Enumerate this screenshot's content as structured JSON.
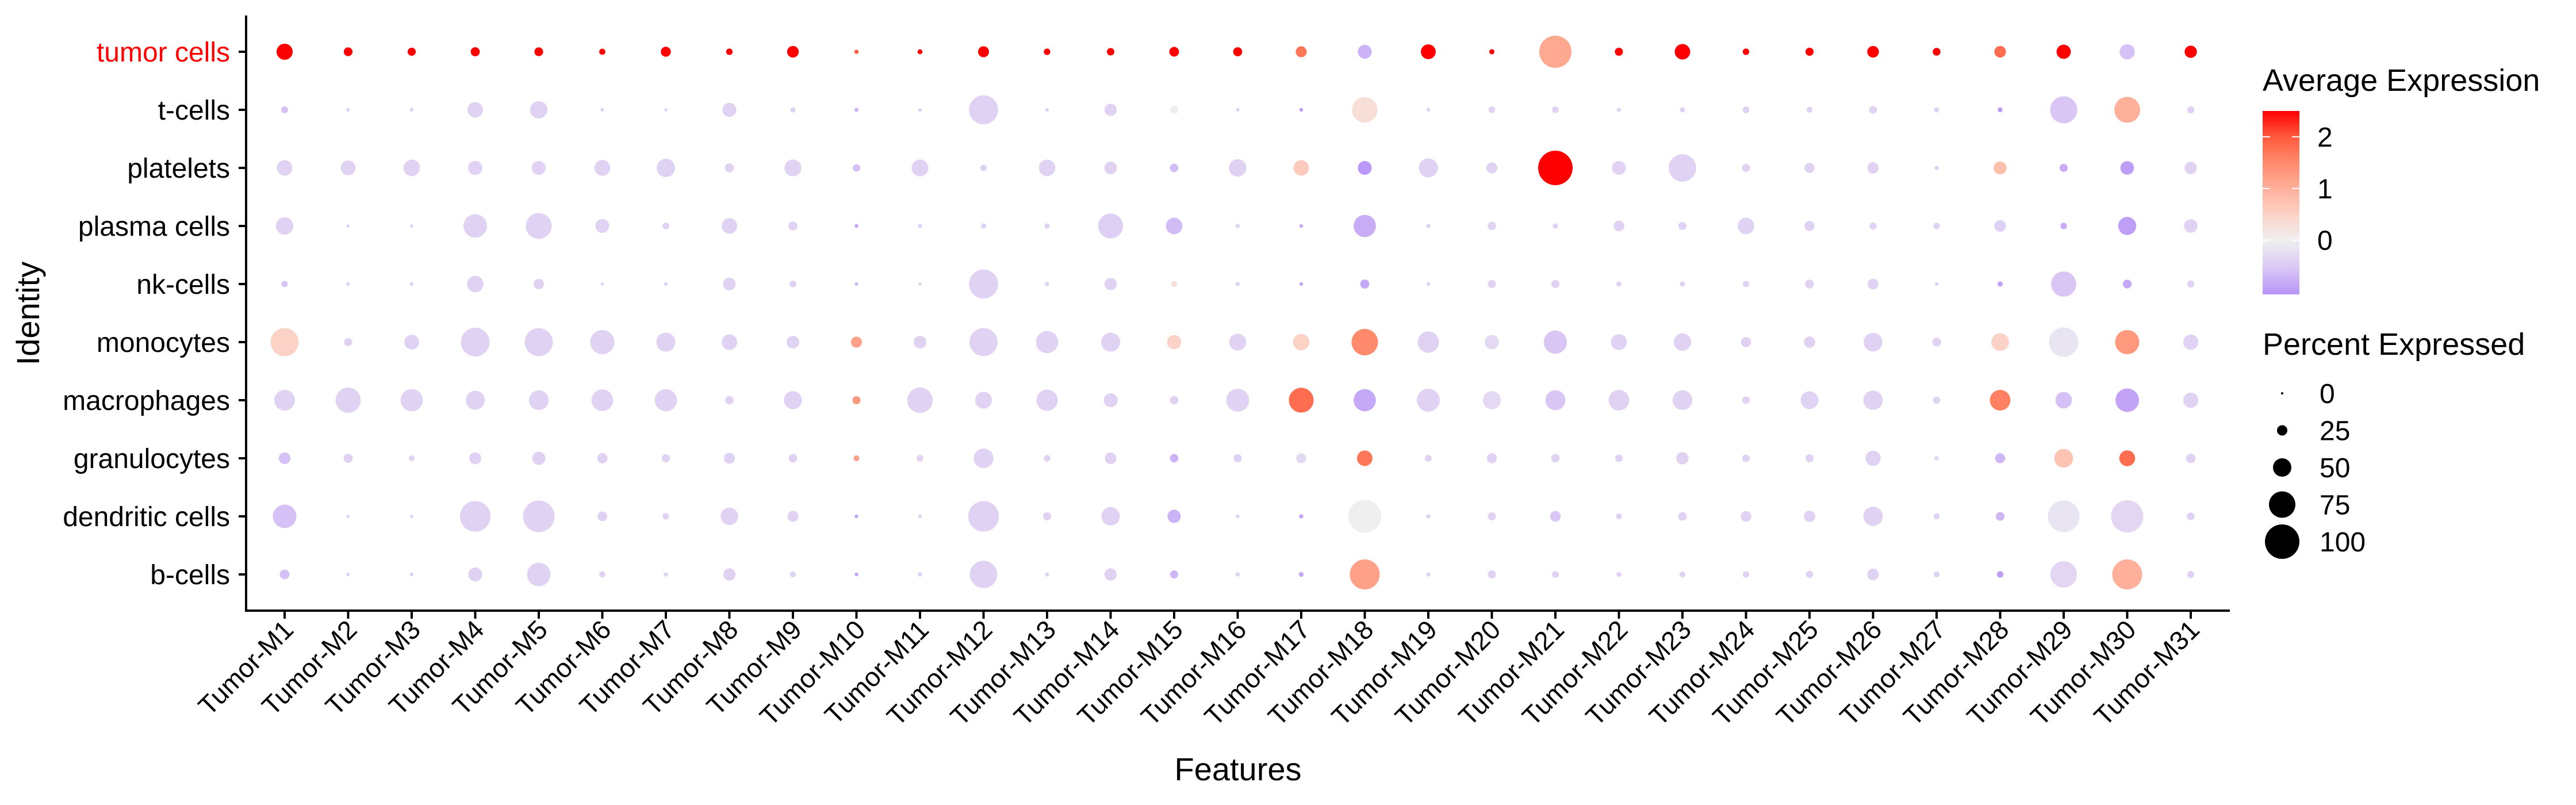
{
  "chart_data": {
    "type": "dotplot",
    "xlabel": "Features",
    "ylabel": "Identity",
    "highlight_color": "#FF0000",
    "highlighted_identity": "tumor cells",
    "features": [
      "Tumor-M1",
      "Tumor-M2",
      "Tumor-M3",
      "Tumor-M4",
      "Tumor-M5",
      "Tumor-M6",
      "Tumor-M7",
      "Tumor-M8",
      "Tumor-M9",
      "Tumor-M10",
      "Tumor-M11",
      "Tumor-M12",
      "Tumor-M13",
      "Tumor-M14",
      "Tumor-M15",
      "Tumor-M16",
      "Tumor-M17",
      "Tumor-M18",
      "Tumor-M19",
      "Tumor-M20",
      "Tumor-M21",
      "Tumor-M22",
      "Tumor-M23",
      "Tumor-M24",
      "Tumor-M25",
      "Tumor-M26",
      "Tumor-M27",
      "Tumor-M28",
      "Tumor-M29",
      "Tumor-M30",
      "Tumor-M31"
    ],
    "identities": [
      {
        "name": "tumor cells",
        "percent_expressed": [
          43,
          20,
          18,
          21,
          20,
          12,
          24,
          13,
          29,
          6,
          8,
          27,
          13,
          16,
          23,
          21,
          27,
          36,
          39,
          9,
          93,
          18,
          41,
          13,
          18,
          29,
          17,
          29,
          37,
          40,
          31
        ],
        "average_expression": [
          2.5,
          2.5,
          2.5,
          2.5,
          2.5,
          2.5,
          2.5,
          2.5,
          2.5,
          2.0,
          2.5,
          2.5,
          2.5,
          2.5,
          2.5,
          2.5,
          1.7,
          -0.75,
          2.5,
          2.5,
          1.1,
          2.5,
          2.5,
          2.5,
          2.5,
          2.5,
          2.5,
          1.8,
          2.5,
          -0.6,
          2.5
        ]
      },
      {
        "name": "t-cells",
        "percent_expressed": [
          14,
          4,
          4,
          41,
          47,
          4,
          3,
          36,
          9,
          6,
          4,
          83,
          4,
          31,
          18,
          4,
          4,
          72,
          4,
          13,
          13,
          6,
          9,
          14,
          11,
          17,
          9,
          8,
          77,
          73,
          15
        ],
        "average_expression": [
          -0.6,
          -0.4,
          -0.4,
          -0.4,
          -0.4,
          -0.4,
          -0.4,
          -0.4,
          -0.4,
          -0.7,
          -0.4,
          -0.4,
          -0.4,
          -0.4,
          0.0,
          -0.4,
          -1.0,
          0.3,
          -0.4,
          -0.4,
          -0.4,
          -0.4,
          -0.4,
          -0.4,
          -0.4,
          -0.4,
          -0.4,
          -1.0,
          -0.55,
          1.0,
          -0.4
        ]
      },
      {
        "name": "platelets",
        "percent_expressed": [
          41,
          39,
          44,
          37,
          36,
          42,
          50,
          21,
          45,
          16,
          45,
          13,
          44,
          32,
          19,
          47,
          41,
          36,
          52,
          27,
          100,
          36,
          78,
          18,
          24,
          28,
          6,
          33,
          18,
          35,
          31
        ],
        "average_expression": [
          -0.4,
          -0.4,
          -0.4,
          -0.4,
          -0.4,
          -0.4,
          -0.4,
          -0.4,
          -0.4,
          -0.6,
          -0.4,
          -0.4,
          -0.4,
          -0.4,
          -0.65,
          -0.4,
          0.6,
          -1.0,
          -0.4,
          -0.4,
          2.5,
          -0.4,
          -0.4,
          -0.4,
          -0.4,
          -0.4,
          -0.4,
          0.8,
          -0.8,
          -0.95,
          -0.4
        ]
      },
      {
        "name": "plasma cells",
        "percent_expressed": [
          47,
          3,
          3,
          66,
          73,
          36,
          14,
          41,
          21,
          4,
          6,
          9,
          9,
          70,
          44,
          6,
          4,
          62,
          6,
          19,
          9,
          26,
          18,
          44,
          24,
          15,
          13,
          29,
          13,
          49,
          35
        ],
        "average_expression": [
          -0.4,
          -0.4,
          -0.4,
          -0.4,
          -0.4,
          -0.4,
          -0.4,
          -0.4,
          -0.4,
          -0.9,
          -0.4,
          -0.4,
          -0.4,
          -0.45,
          -0.65,
          -0.4,
          -0.85,
          -0.8,
          -0.4,
          -0.4,
          -0.4,
          -0.4,
          -0.4,
          -0.4,
          -0.4,
          -0.4,
          -0.4,
          -0.45,
          -0.8,
          -0.95,
          -0.4
        ]
      },
      {
        "name": "nk-cells",
        "percent_expressed": [
          12,
          4,
          4,
          44,
          25,
          3,
          4,
          32,
          14,
          4,
          3,
          83,
          6,
          31,
          11,
          6,
          4,
          21,
          4,
          18,
          18,
          9,
          9,
          13,
          20,
          26,
          4,
          9,
          71,
          20,
          15
        ],
        "average_expression": [
          -0.6,
          -0.4,
          -0.4,
          -0.4,
          -0.4,
          -0.4,
          -0.4,
          -0.4,
          -0.4,
          -0.7,
          -0.4,
          -0.4,
          -0.4,
          -0.4,
          0.3,
          -0.4,
          -0.9,
          -0.85,
          -0.4,
          -0.4,
          -0.4,
          -0.4,
          -0.4,
          -0.4,
          -0.4,
          -0.4,
          -0.4,
          -0.9,
          -0.55,
          -0.85,
          -0.4
        ]
      },
      {
        "name": "monocytes",
        "percent_expressed": [
          80,
          18,
          39,
          82,
          80,
          68,
          52,
          41,
          32,
          27,
          32,
          80,
          62,
          52,
          37,
          45,
          44,
          75,
          59,
          37,
          65,
          42,
          47,
          24,
          28,
          51,
          20,
          48,
          84,
          68,
          40
        ],
        "average_expression": [
          0.5,
          -0.4,
          -0.4,
          -0.4,
          -0.4,
          -0.4,
          -0.4,
          -0.4,
          -0.4,
          1.2,
          -0.4,
          -0.4,
          -0.4,
          -0.4,
          0.5,
          -0.4,
          0.5,
          1.5,
          -0.4,
          -0.3,
          -0.55,
          -0.4,
          -0.4,
          -0.4,
          -0.4,
          -0.4,
          -0.4,
          0.5,
          -0.15,
          1.3,
          -0.4
        ]
      },
      {
        "name": "macrophages",
        "percent_expressed": [
          57,
          71,
          62,
          52,
          54,
          60,
          62,
          19,
          49,
          18,
          72,
          45,
          59,
          36,
          19,
          64,
          70,
          62,
          64,
          49,
          55,
          57,
          54,
          16,
          48,
          53,
          15,
          57,
          44,
          66,
          40
        ],
        "average_expression": [
          -0.4,
          -0.4,
          -0.4,
          -0.4,
          -0.4,
          -0.4,
          -0.4,
          -0.4,
          -0.4,
          1.3,
          -0.4,
          -0.4,
          -0.4,
          -0.4,
          -0.4,
          -0.4,
          1.8,
          -0.85,
          -0.4,
          -0.3,
          -0.55,
          -0.4,
          -0.4,
          -0.4,
          -0.4,
          -0.4,
          -0.4,
          1.6,
          -0.6,
          -0.9,
          -0.4
        ]
      },
      {
        "name": "granulocytes",
        "percent_expressed": [
          29,
          21,
          11,
          30,
          34,
          25,
          18,
          27,
          19,
          11,
          14,
          54,
          13,
          29,
          19,
          18,
          24,
          41,
          14,
          24,
          19,
          16,
          31,
          16,
          18,
          40,
          6,
          24,
          51,
          42,
          22
        ],
        "average_expression": [
          -0.6,
          -0.4,
          -0.4,
          -0.4,
          -0.4,
          -0.4,
          -0.4,
          -0.4,
          -0.4,
          1.2,
          -0.4,
          -0.4,
          -0.4,
          -0.4,
          -0.75,
          -0.4,
          -0.3,
          1.7,
          -0.4,
          -0.4,
          -0.4,
          -0.4,
          -0.4,
          -0.4,
          -0.4,
          -0.4,
          -0.4,
          -0.7,
          0.7,
          1.8,
          -0.4
        ]
      },
      {
        "name": "dendritic cells",
        "percent_expressed": [
          66,
          3,
          3,
          88,
          91,
          23,
          13,
          47,
          27,
          4,
          4,
          88,
          18,
          50,
          34,
          4,
          6,
          95,
          6,
          18,
          26,
          11,
          19,
          26,
          28,
          53,
          11,
          20,
          91,
          93,
          17
        ],
        "average_expression": [
          -0.6,
          -0.4,
          -0.4,
          -0.4,
          -0.4,
          -0.4,
          -0.4,
          -0.4,
          -0.4,
          -0.9,
          -0.4,
          -0.4,
          -0.4,
          -0.4,
          -0.75,
          -0.4,
          -0.9,
          0.0,
          -0.4,
          -0.4,
          -0.55,
          -0.4,
          -0.4,
          -0.4,
          -0.4,
          -0.4,
          -0.4,
          -0.7,
          -0.15,
          -0.35,
          -0.4
        ]
      },
      {
        "name": "b-cells",
        "percent_expressed": [
          23,
          4,
          4,
          36,
          66,
          12,
          6,
          31,
          11,
          4,
          6,
          78,
          6,
          31,
          18,
          6,
          8,
          86,
          6,
          18,
          14,
          8,
          11,
          13,
          15,
          29,
          11,
          13,
          75,
          86,
          15
        ],
        "average_expression": [
          -0.6,
          -0.4,
          -0.4,
          -0.4,
          -0.4,
          -0.4,
          -0.4,
          -0.4,
          -0.4,
          -0.9,
          -0.4,
          -0.4,
          -0.4,
          -0.4,
          -0.7,
          -0.4,
          -0.85,
          1.2,
          -0.4,
          -0.4,
          -0.4,
          -0.4,
          -0.4,
          -0.4,
          -0.4,
          -0.4,
          -0.4,
          -0.95,
          -0.35,
          1.0,
          -0.4
        ]
      }
    ],
    "color_legend": {
      "title": "Average Expression",
      "range": [
        -1.05,
        2.5
      ],
      "ticks": [
        {
          "value": 2,
          "label": "2"
        },
        {
          "value": 1,
          "label": "1"
        },
        {
          "value": 0,
          "label": "0"
        }
      ],
      "color_scale": [
        {
          "value": -1.05,
          "color": "#B894F8"
        },
        {
          "value": -0.5,
          "color": "#DCCBF4"
        },
        {
          "value": 0,
          "color": "#EFEFEF"
        },
        {
          "value": 0.5,
          "color": "#FCD2C6"
        },
        {
          "value": 1,
          "color": "#FEB09A"
        },
        {
          "value": 1.5,
          "color": "#FF8A6C"
        },
        {
          "value": 2,
          "color": "#FF5A3D"
        },
        {
          "value": 2.5,
          "color": "#FF0000"
        }
      ]
    },
    "size_legend": {
      "title": "Percent Expressed",
      "items": [
        {
          "value": 0,
          "label": "0"
        },
        {
          "value": 25,
          "label": "25"
        },
        {
          "value": 50,
          "label": "50"
        },
        {
          "value": 75,
          "label": "75"
        },
        {
          "value": 100,
          "label": "100"
        }
      ]
    },
    "grid": false,
    "legend_position": "right"
  }
}
